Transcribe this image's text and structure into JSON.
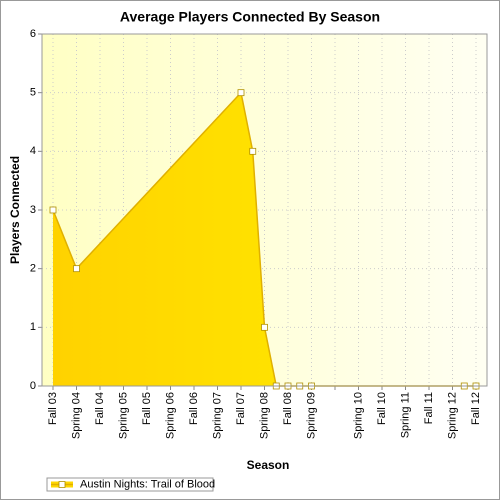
{
  "chart_data": {
    "type": "area",
    "title": "Average Players Connected By Season",
    "x_label": "Season",
    "y_label": "Players Connected",
    "categories": [
      "Fall 03",
      "Spring 04",
      "Fall 04",
      "Spring 05",
      "Fall 05",
      "Spring 06",
      "Fall 06",
      "Spring 07",
      "Fall 07",
      "Spring 08",
      "Fall 08",
      "Spring 09",
      null,
      "Spring 10",
      "Fall 10",
      "Spring 11",
      "Fall 11",
      "Spring 12",
      "Fall 12"
    ],
    "series": [
      {
        "name": "Austin Nights: Trail of Blood",
        "color": "#ffd700",
        "x": [
          0,
          1,
          8,
          8.5,
          9,
          9.5,
          10,
          10.5,
          11,
          17.5,
          18
        ],
        "values": [
          3,
          2,
          5,
          4,
          1,
          0,
          0,
          0,
          0,
          0,
          0
        ]
      }
    ],
    "ylim": [
      0,
      6
    ],
    "yticks": [
      0,
      1,
      2,
      3,
      4,
      5,
      6
    ],
    "grid": true,
    "legend": "bottom-left"
  }
}
